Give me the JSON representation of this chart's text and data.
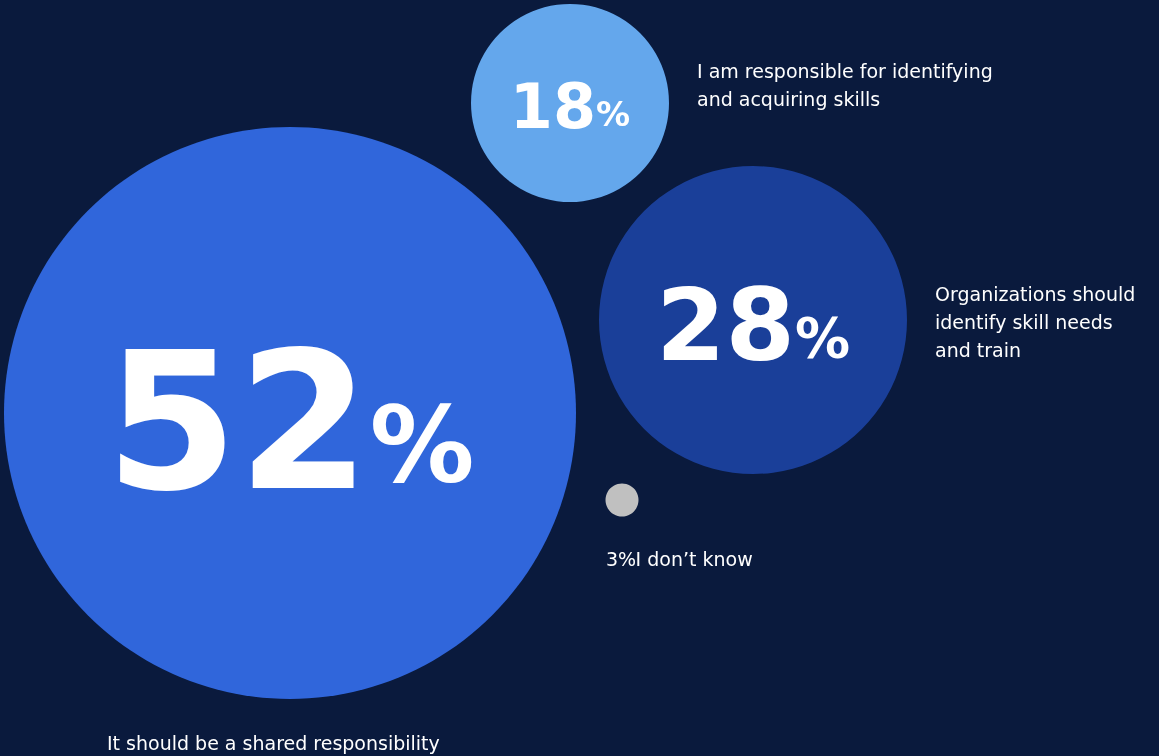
{
  "chart_data": {
    "type": "other",
    "categories": [
      "It should be a shared responsibility",
      "Organizations should identify skill needs and train",
      "I am responsible for identifying and acquiring skills",
      "I don’t know"
    ],
    "values": [
      52,
      28,
      18,
      3
    ],
    "value_labels": [
      "52%",
      "28%",
      "18%",
      "3%"
    ],
    "colors": [
      "#3066db",
      "#1a3f99",
      "#64a7ec",
      "#c0c0c0"
    ]
  }
}
